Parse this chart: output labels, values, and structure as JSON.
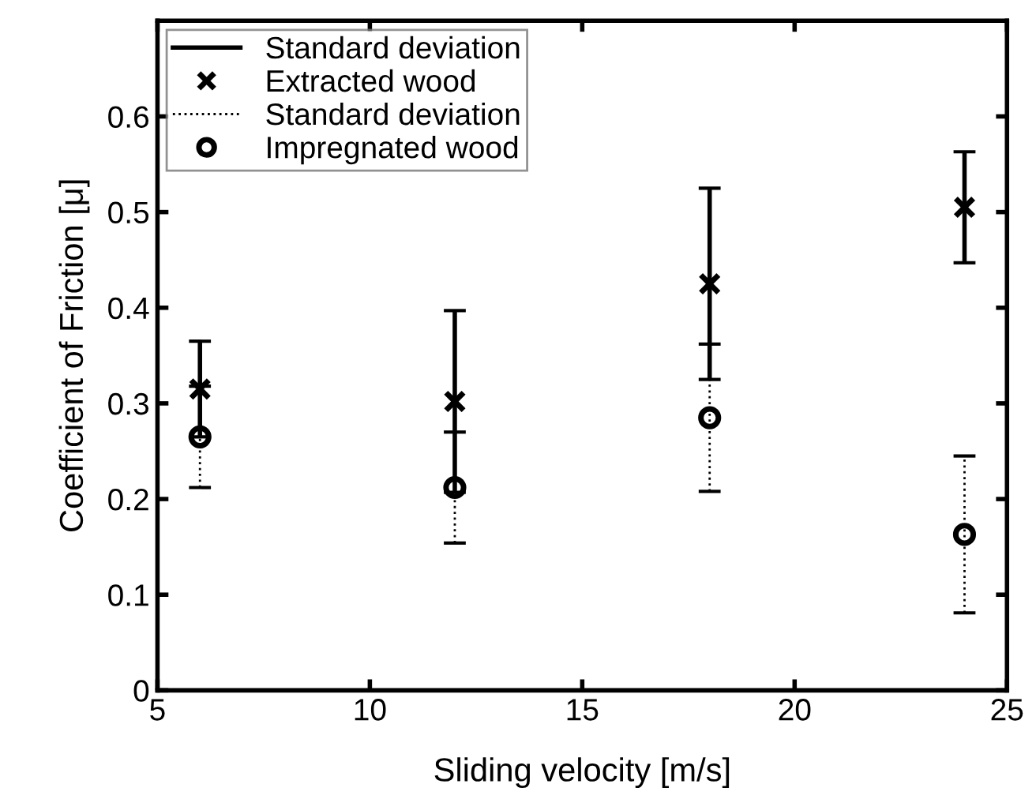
{
  "chart_data": {
    "type": "scatter",
    "xlabel": "Sliding velocity [m/s]",
    "ylabel": "Coefficient of Friction [μ]",
    "x": [
      6,
      12,
      18,
      24
    ],
    "series": [
      {
        "name": "Extracted wood",
        "color": "#000000",
        "marker": "cross",
        "line_style": "solid",
        "values": [
          0.315,
          0.302,
          0.425,
          0.505
        ],
        "errors": [
          0.05,
          0.095,
          0.1,
          0.058
        ]
      },
      {
        "name": "Impregnated wood",
        "color": "#000000",
        "marker": "circle",
        "line_style": "dotted",
        "values": [
          0.265,
          0.212,
          0.285,
          0.163
        ],
        "errors": [
          0.053,
          0.058,
          0.077,
          0.082
        ]
      }
    ],
    "annotations": [
      "Standard deviation",
      "Standard deviation"
    ],
    "xlim": [
      5,
      25
    ],
    "xticks": [
      5,
      10,
      15,
      20,
      25
    ],
    "ylim": [
      0,
      0.7
    ],
    "yticks": [
      0,
      0.1,
      0.2,
      0.3,
      0.4,
      0.5,
      0.6
    ],
    "grid": false,
    "legend": "top left"
  }
}
